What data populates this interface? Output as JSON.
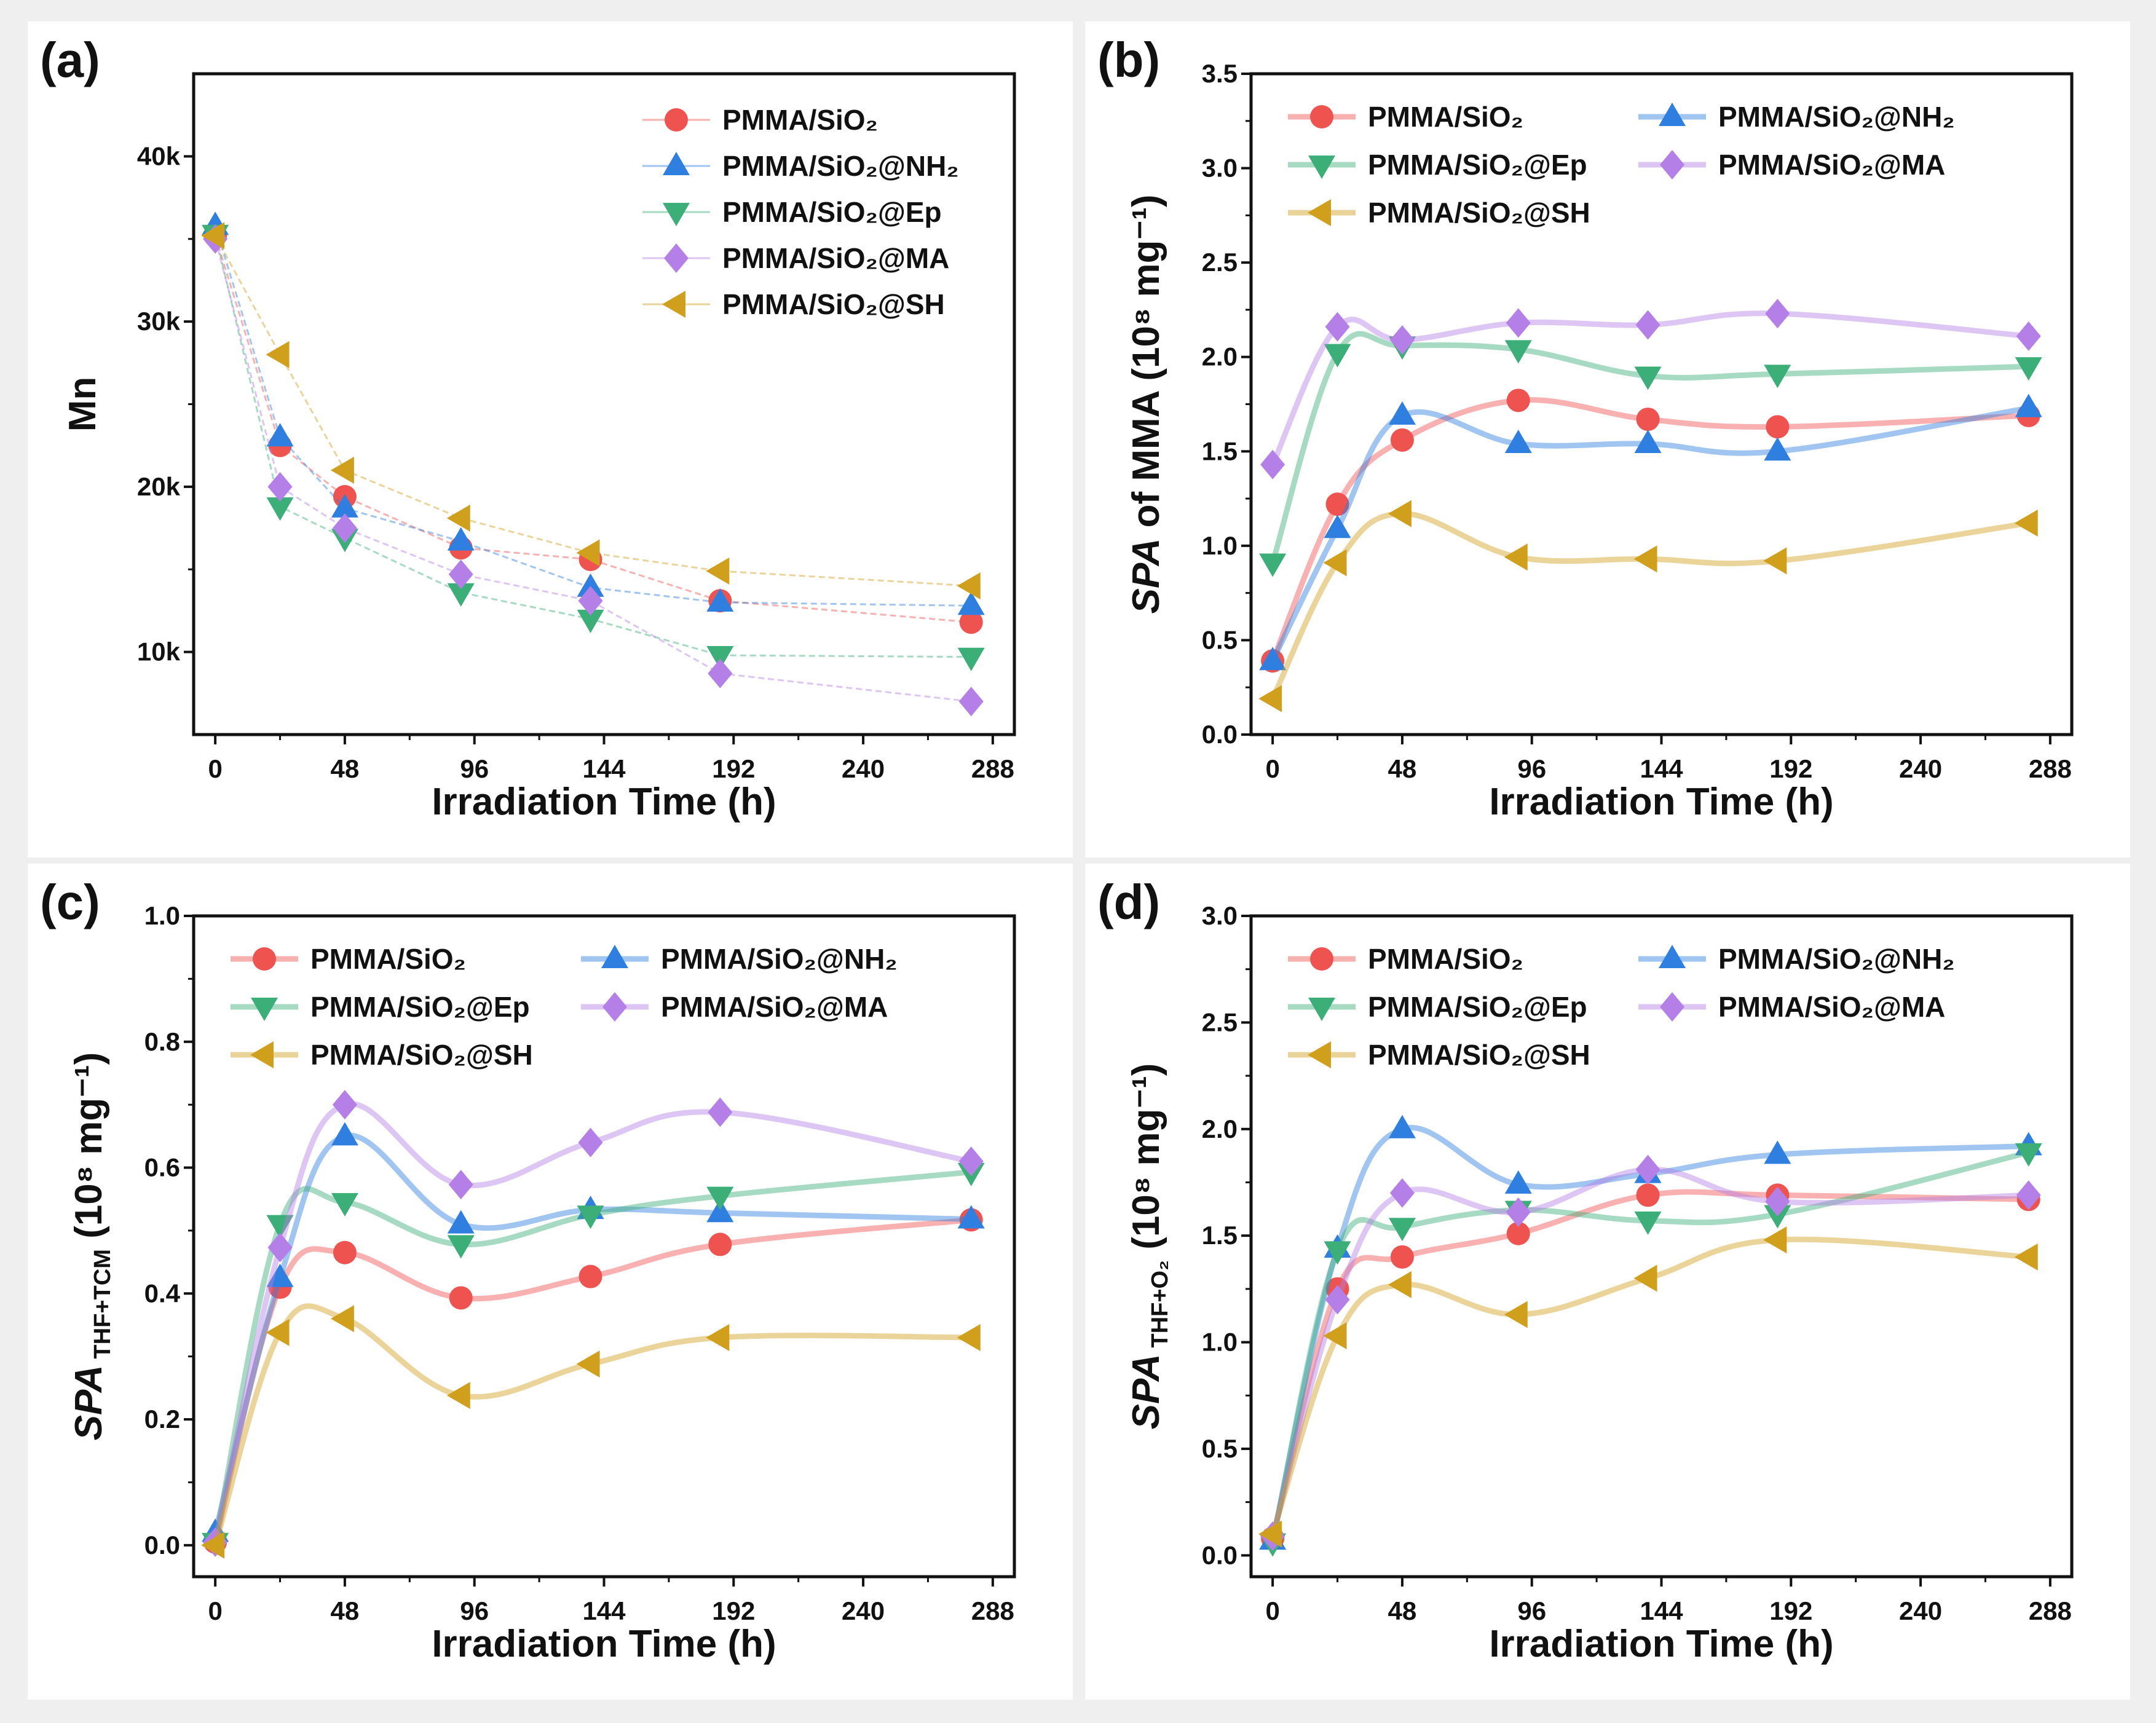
{
  "colors": {
    "red": "#ef5350",
    "blue": "#2f7fe0",
    "green": "#3cae78",
    "purple": "#b47fe6",
    "gold": "#d0a01c"
  },
  "chart_data": [
    {
      "panel_label": "(a)",
      "type": "line",
      "style": "dashed",
      "legend_layout": "one-column-top-right",
      "xlabel": "Irradiation Time (h)",
      "ylabel": {
        "main": "Mn"
      },
      "xlim": [
        -8,
        296
      ],
      "xticks": [
        0,
        48,
        96,
        144,
        192,
        240,
        288
      ],
      "xtick_labels": [
        "0",
        "48",
        "96",
        "144",
        "192",
        "240",
        "288"
      ],
      "ylim": [
        5000,
        45000
      ],
      "yticks": [
        10000,
        20000,
        30000,
        40000
      ],
      "ytick_labels": [
        "10k",
        "20k",
        "30k",
        "40k"
      ],
      "x": [
        0,
        24,
        48,
        91,
        139,
        187,
        280
      ],
      "series": [
        {
          "name": "PMMA/SiO₂",
          "color": "red",
          "marker": "circle",
          "values": [
            35200,
            22500,
            19400,
            16300,
            15600,
            13100,
            11800
          ]
        },
        {
          "name": "PMMA/SiO₂@NH₂",
          "color": "blue",
          "marker": "triangle-up",
          "values": [
            35800,
            23000,
            18700,
            16700,
            13900,
            13000,
            12800
          ]
        },
        {
          "name": "PMMA/SiO₂@Ep",
          "color": "green",
          "marker": "triangle-down",
          "values": [
            35300,
            18800,
            16900,
            13600,
            12000,
            9800,
            9700
          ]
        },
        {
          "name": "PMMA/SiO₂@MA",
          "color": "purple",
          "marker": "diamond",
          "values": [
            35000,
            20000,
            17500,
            14700,
            13100,
            8700,
            7000
          ]
        },
        {
          "name": "PMMA/SiO₂@SH",
          "color": "gold",
          "marker": "triangle-left",
          "values": [
            35200,
            28000,
            21000,
            18100,
            16000,
            14900,
            14000
          ]
        }
      ]
    },
    {
      "panel_label": "(b)",
      "type": "line",
      "style": "smooth",
      "legend_layout": "two-column-top-left",
      "xlabel": "Irradiation Time (h)",
      "ylabel": {
        "italic": "SPA",
        "main": " of MMA (10⁸ mg⁻¹)"
      },
      "xlim": [
        -8,
        296
      ],
      "xticks": [
        0,
        48,
        96,
        144,
        192,
        240,
        288
      ],
      "xtick_labels": [
        "0",
        "48",
        "96",
        "144",
        "192",
        "240",
        "288"
      ],
      "ylim": [
        0,
        3.5
      ],
      "yticks": [
        0,
        0.5,
        1,
        1.5,
        2,
        2.5,
        3,
        3.5
      ],
      "ytick_labels": [
        "0.0",
        "0.5",
        "1.0",
        "1.5",
        "2.0",
        "2.5",
        "3.0",
        "3.5"
      ],
      "x": [
        0,
        24,
        48,
        91,
        139,
        187,
        280
      ],
      "series": [
        {
          "name": "PMMA/SiO₂",
          "color": "red",
          "marker": "circle",
          "values": [
            0.39,
            1.22,
            1.56,
            1.77,
            1.67,
            1.63,
            1.69
          ]
        },
        {
          "name": "PMMA/SiO₂@NH₂",
          "color": "blue",
          "marker": "triangle-up",
          "values": [
            0.39,
            1.09,
            1.69,
            1.54,
            1.54,
            1.5,
            1.73
          ]
        },
        {
          "name": "PMMA/SiO₂@Ep",
          "color": "green",
          "marker": "triangle-down",
          "values": [
            0.91,
            2.02,
            2.06,
            2.04,
            1.9,
            1.91,
            1.95
          ]
        },
        {
          "name": "PMMA/SiO₂@MA",
          "color": "purple",
          "marker": "diamond",
          "values": [
            1.43,
            2.16,
            2.09,
            2.18,
            2.17,
            2.23,
            2.11
          ]
        },
        {
          "name": "PMMA/SiO₂@SH",
          "color": "gold",
          "marker": "triangle-left",
          "values": [
            0.19,
            0.91,
            1.17,
            0.94,
            0.93,
            0.92,
            1.12
          ]
        }
      ]
    },
    {
      "panel_label": "(c)",
      "type": "line",
      "style": "smooth",
      "legend_layout": "two-column-top-left",
      "xlabel": "Irradiation Time (h)",
      "ylabel": {
        "italic": "SPA",
        "sub": "THF+TCM",
        "main": " (10⁸ mg⁻¹)"
      },
      "xlim": [
        -8,
        296
      ],
      "xticks": [
        0,
        48,
        96,
        144,
        192,
        240,
        288
      ],
      "xtick_labels": [
        "0",
        "48",
        "96",
        "144",
        "192",
        "240",
        "288"
      ],
      "ylim": [
        -0.05,
        1.0
      ],
      "yticks": [
        0,
        0.2,
        0.4,
        0.6,
        0.8,
        1.0
      ],
      "ytick_labels": [
        "0.0",
        "0.2",
        "0.4",
        "0.6",
        "0.8",
        "1.0"
      ],
      "x": [
        0,
        24,
        48,
        91,
        139,
        187,
        280
      ],
      "series": [
        {
          "name": "PMMA/SiO₂",
          "color": "red",
          "marker": "circle",
          "values": [
            0.005,
            0.41,
            0.465,
            0.393,
            0.427,
            0.478,
            0.517
          ]
        },
        {
          "name": "PMMA/SiO₂@NH₂",
          "color": "blue",
          "marker": "triangle-up",
          "values": [
            0.02,
            0.425,
            0.65,
            0.51,
            0.533,
            0.528,
            0.518
          ]
        },
        {
          "name": "PMMA/SiO₂@Ep",
          "color": "green",
          "marker": "triangle-down",
          "values": [
            0.005,
            0.51,
            0.545,
            0.478,
            0.525,
            0.555,
            0.593
          ]
        },
        {
          "name": "PMMA/SiO₂@MA",
          "color": "purple",
          "marker": "diamond",
          "values": [
            0.005,
            0.473,
            0.7,
            0.573,
            0.64,
            0.688,
            0.61
          ]
        },
        {
          "name": "PMMA/SiO₂@SH",
          "color": "gold",
          "marker": "triangle-left",
          "values": [
            0.0,
            0.338,
            0.36,
            0.238,
            0.288,
            0.33,
            0.33
          ]
        }
      ]
    },
    {
      "panel_label": "(d)",
      "type": "line",
      "style": "smooth",
      "legend_layout": "two-column-top-left",
      "xlabel": "Irradiation Time (h)",
      "ylabel": {
        "italic": "SPA",
        "sub": "THF+O₂",
        "main": " (10⁸ mg⁻¹)"
      },
      "xlim": [
        -8,
        296
      ],
      "xticks": [
        0,
        48,
        96,
        144,
        192,
        240,
        288
      ],
      "xtick_labels": [
        "0",
        "48",
        "96",
        "144",
        "192",
        "240",
        "288"
      ],
      "ylim": [
        -0.1,
        3.0
      ],
      "yticks": [
        0,
        0.5,
        1,
        1.5,
        2,
        2.5,
        3
      ],
      "ytick_labels": [
        "0.0",
        "0.5",
        "1.0",
        "1.5",
        "2.0",
        "2.5",
        "3.0"
      ],
      "x": [
        0,
        24,
        48,
        91,
        139,
        187,
        280
      ],
      "series": [
        {
          "name": "PMMA/SiO₂",
          "color": "red",
          "marker": "circle",
          "values": [
            0.08,
            1.25,
            1.4,
            1.51,
            1.69,
            1.69,
            1.67
          ]
        },
        {
          "name": "PMMA/SiO₂@NH₂",
          "color": "blue",
          "marker": "triangle-up",
          "values": [
            0.07,
            1.44,
            2.0,
            1.74,
            1.79,
            1.88,
            1.92
          ]
        },
        {
          "name": "PMMA/SiO₂@Ep",
          "color": "green",
          "marker": "triangle-down",
          "values": [
            0.06,
            1.43,
            1.54,
            1.62,
            1.57,
            1.6,
            1.89
          ]
        },
        {
          "name": "PMMA/SiO₂@MA",
          "color": "purple",
          "marker": "diamond",
          "values": [
            0.09,
            1.2,
            1.7,
            1.61,
            1.81,
            1.66,
            1.69
          ]
        },
        {
          "name": "PMMA/SiO₂@SH",
          "color": "gold",
          "marker": "triangle-left",
          "values": [
            0.1,
            1.03,
            1.27,
            1.13,
            1.3,
            1.48,
            1.4
          ]
        }
      ]
    }
  ]
}
